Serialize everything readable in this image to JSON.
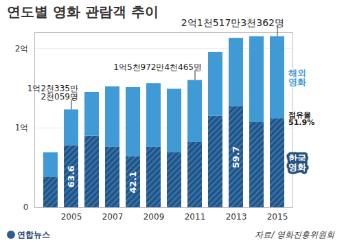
{
  "chart_data": {
    "type": "bar",
    "title": "연도별 영화 관람객 추이",
    "source": "자료/ 영화진흥위원회",
    "credit": "연합뉴스",
    "stacked": true,
    "grid": true,
    "legend": "right",
    "categories": [
      null,
      "2005",
      null,
      "2007",
      null,
      "2009",
      null,
      "2011",
      null,
      "2013",
      null,
      "2015"
    ],
    "series": [
      {
        "name": "한국영화",
        "color": "#24527e",
        "values": [
          0.38,
          0.78,
          0.9,
          0.76,
          0.64,
          0.76,
          0.69,
          0.82,
          1.15,
          1.27,
          1.07,
          1.12
        ]
      },
      {
        "name": "해외영화",
        "color": "#3f9ad6",
        "values": [
          0.31,
          0.45,
          0.55,
          0.76,
          0.87,
          0.8,
          0.8,
          0.78,
          0.8,
          0.86,
          1.08,
          1.03
        ]
      }
    ],
    "ylim": [
      0,
      2.2
    ],
    "yticks": [
      0,
      {
        "value": 1,
        "label": "1억"
      },
      {
        "value": 2,
        "label": "2억"
      }
    ],
    "annotations": [
      {
        "text": "1억2천335만\n2천059명",
        "category": 1
      },
      {
        "text": "1억5천972만4천465명",
        "category": 7
      },
      {
        "text": "2억1천517만3천362명",
        "category": 11
      }
    ],
    "share_labels": [
      {
        "text": "63.6",
        "category": 1
      },
      {
        "text": "42.1",
        "category": 4
      },
      {
        "text": "59.7",
        "category": 9
      },
      {
        "text": "점유율\n51.9%",
        "category": 11
      }
    ]
  }
}
